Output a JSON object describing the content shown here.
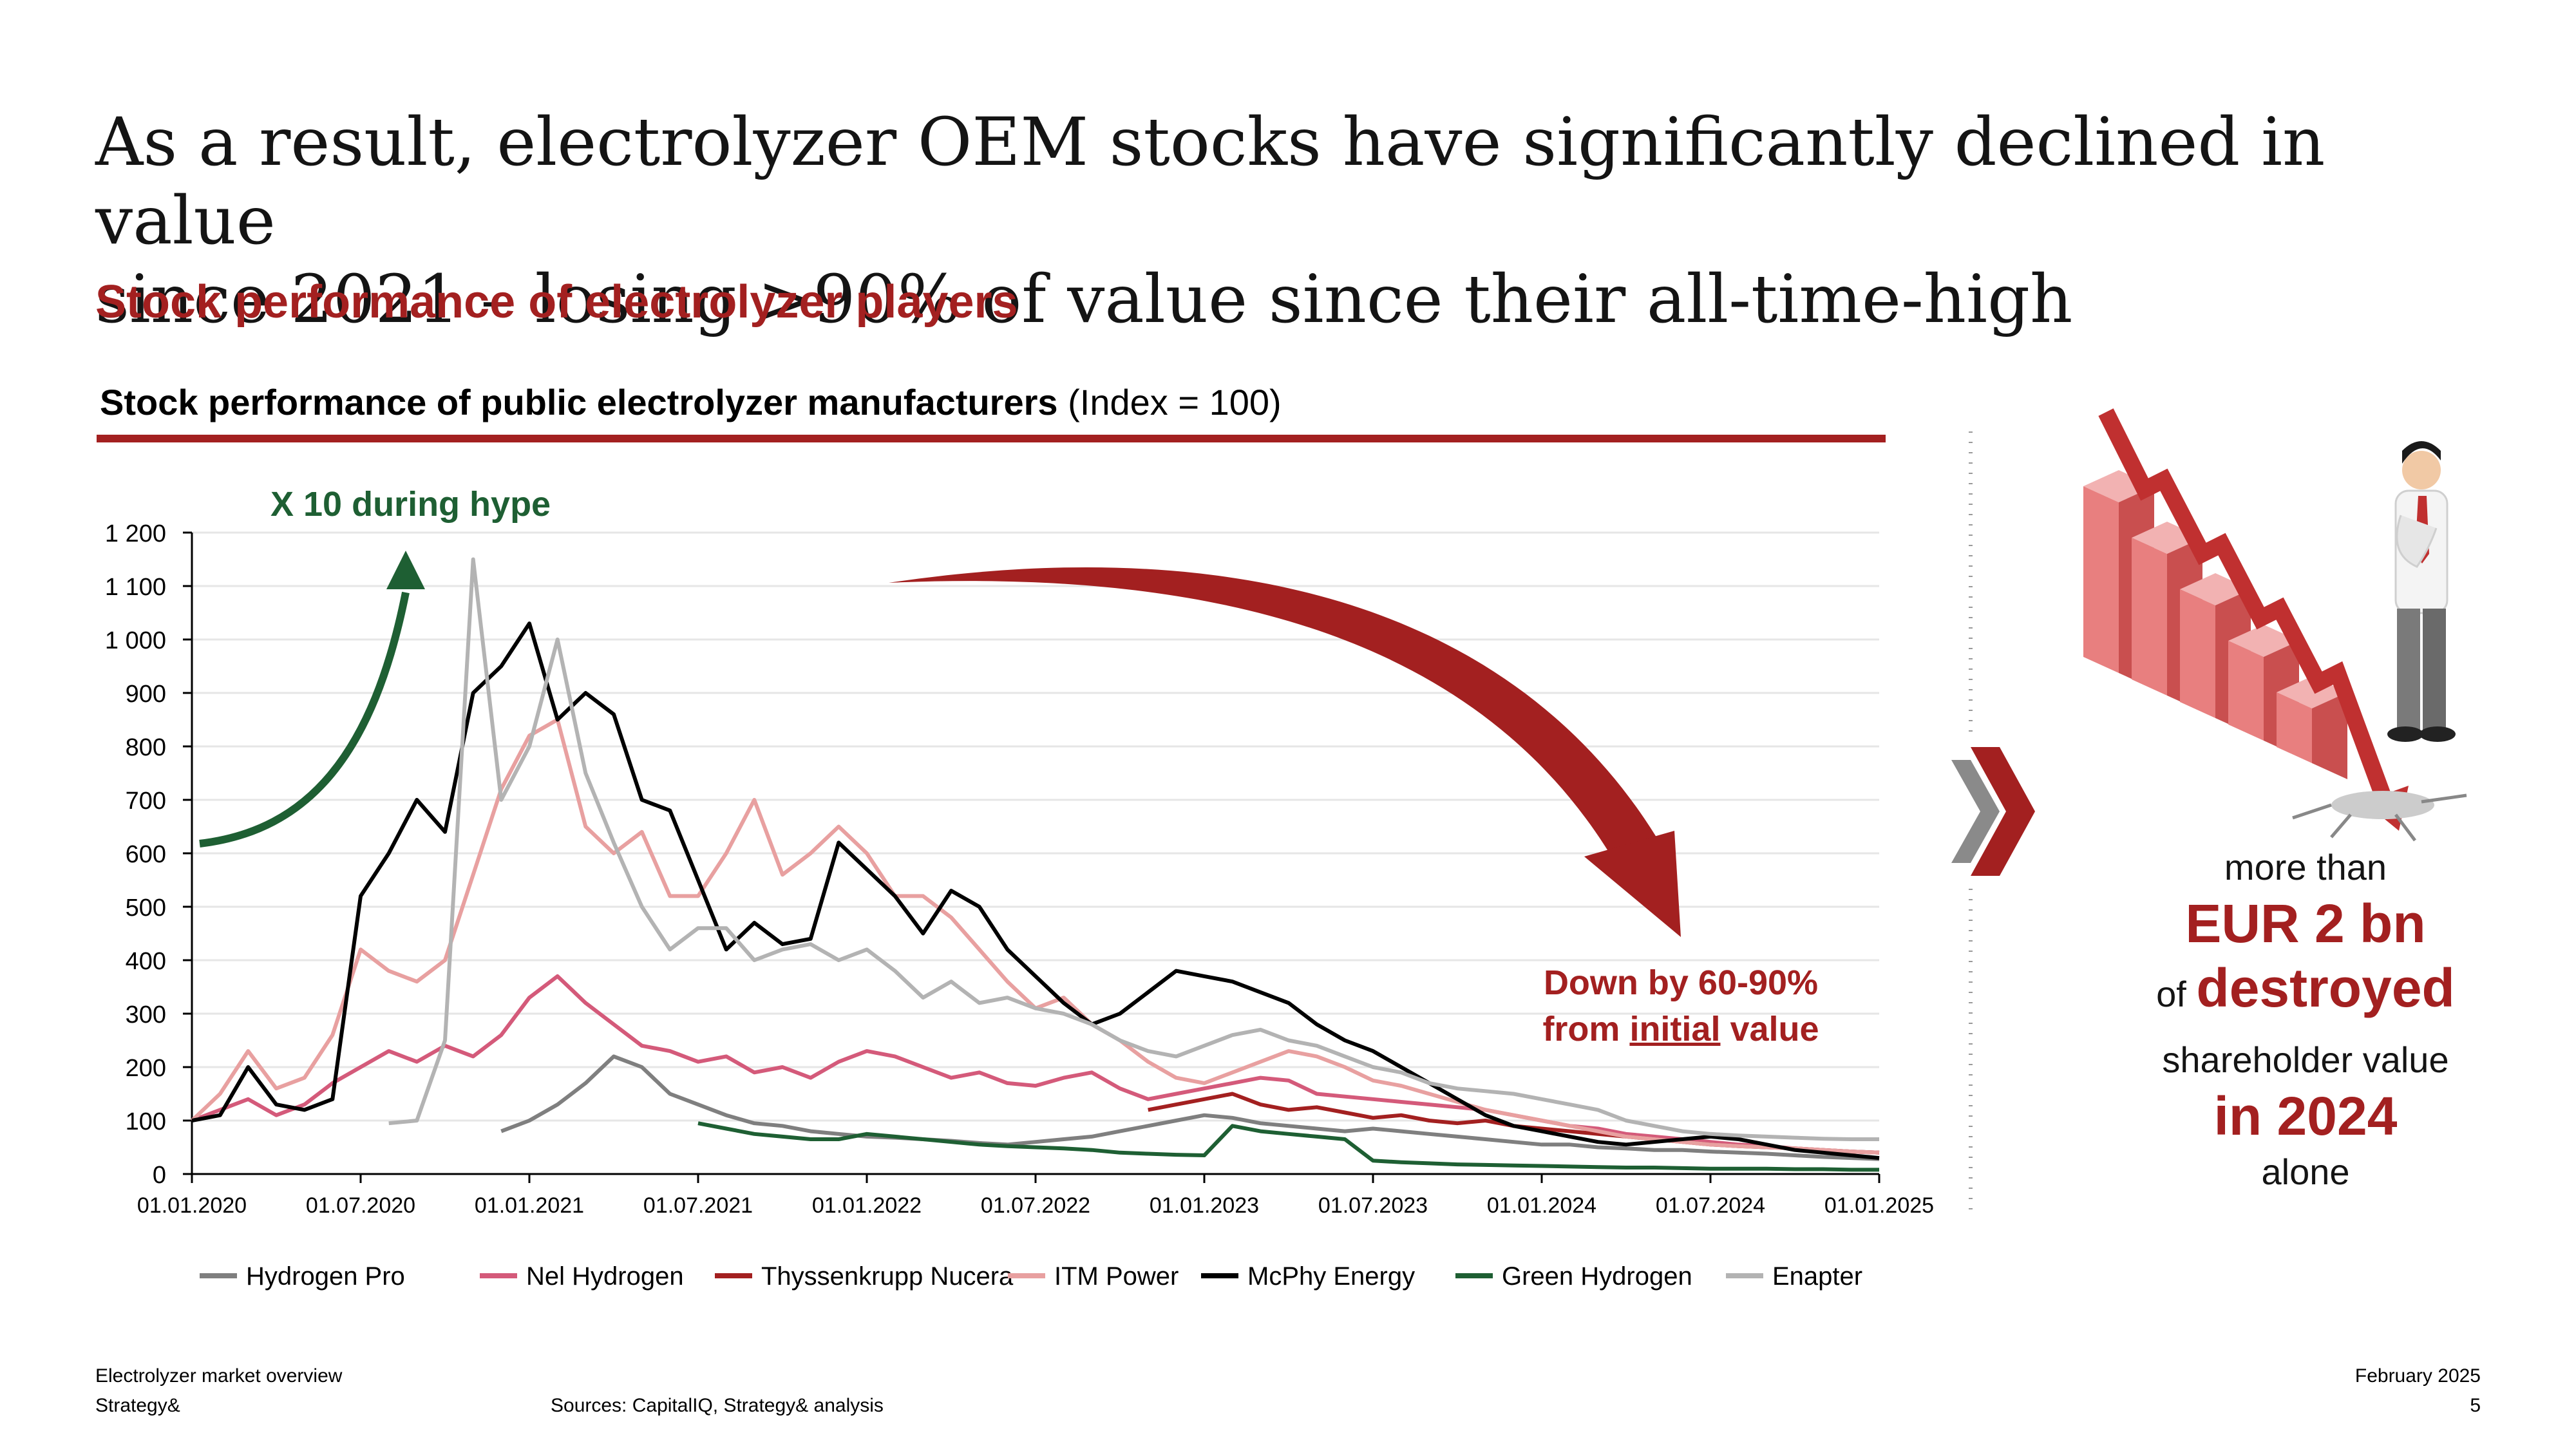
{
  "page": {
    "title_line1": "As a result, electrolyzer OEM stocks have significantly declined in value",
    "title_line2": "since 2021 – losing >90% of value since their all-time-high",
    "subtitle": "Stock performance of electrolyzer players",
    "chart_title_bold": "Stock performance of public electrolyzer manufacturers",
    "chart_title_rest": " (Index = 100)",
    "footer_left1": "Electrolyzer market overview",
    "footer_left2": "Strategy&",
    "footer_sources": "Sources: CapitalIQ, Strategy& analysis",
    "footer_date": "February 2025",
    "footer_page": "5"
  },
  "annotations": {
    "hype": "X 10 during hype",
    "down_line1": "Down by 60-90%",
    "down_line2_pre": "from ",
    "down_line2_underlined": "initial",
    "down_line2_post": " value"
  },
  "side": {
    "line1": "more than",
    "line2": "EUR 2 bn",
    "line3_small": "of ",
    "line3_big": "destroyed",
    "line4": "shareholder value",
    "line5": "in 2024",
    "line6": "alone"
  },
  "colors": {
    "accent_red": "#a32020",
    "hype_green": "#1e5f33",
    "grid": "#e6e6e6"
  },
  "chart_data": {
    "type": "line",
    "title": "Stock performance of public electrolyzer manufacturers (Index = 100)",
    "xlabel": "",
    "ylabel": "",
    "ylim": [
      0,
      1200
    ],
    "yticks": [
      0,
      100,
      200,
      300,
      400,
      500,
      600,
      700,
      800,
      900,
      1000,
      1100,
      1200
    ],
    "ytick_labels": [
      "0",
      "100",
      "200",
      "300",
      "400",
      "500",
      "600",
      "700",
      "800",
      "900",
      "1 000",
      "1 100",
      "1 200"
    ],
    "xlim": [
      0,
      60
    ],
    "xticks": [
      0,
      6,
      12,
      18,
      24,
      30,
      36,
      42,
      48,
      54,
      60
    ],
    "xtick_labels": [
      "01.01.2020",
      "01.07.2020",
      "01.01.2021",
      "01.07.2021",
      "01.01.2022",
      "01.07.2022",
      "01.01.2023",
      "01.07.2023",
      "01.01.2024",
      "01.07.2024",
      "01.01.2025"
    ],
    "x_unit": "months since 01.01.2020",
    "grid": true,
    "legend_position": "bottom",
    "series": [
      {
        "name": "Hydrogen Pro",
        "color": "#7f7f7f",
        "x": [
          11,
          12,
          13,
          14,
          15,
          16,
          17,
          18,
          19,
          20,
          21,
          22,
          23,
          24,
          25,
          26,
          27,
          28,
          29,
          30,
          31,
          32,
          33,
          34,
          35,
          36,
          37,
          38,
          39,
          40,
          41,
          42,
          43,
          44,
          45,
          46,
          47,
          48,
          49,
          50,
          51,
          52,
          53,
          54,
          55,
          56,
          57,
          58,
          59,
          60
        ],
        "values": [
          80,
          100,
          130,
          170,
          220,
          200,
          150,
          130,
          110,
          95,
          90,
          80,
          75,
          70,
          68,
          65,
          62,
          58,
          55,
          60,
          65,
          70,
          80,
          90,
          100,
          110,
          105,
          95,
          90,
          85,
          80,
          85,
          80,
          75,
          70,
          65,
          60,
          55,
          55,
          50,
          48,
          45,
          45,
          42,
          40,
          38,
          35,
          32,
          30,
          28
        ]
      },
      {
        "name": "Nel Hydrogen",
        "color": "#d45a7a",
        "x": [
          0,
          1,
          2,
          3,
          4,
          5,
          6,
          7,
          8,
          9,
          10,
          11,
          12,
          13,
          14,
          15,
          16,
          17,
          18,
          19,
          20,
          21,
          22,
          23,
          24,
          25,
          26,
          27,
          28,
          29,
          30,
          31,
          32,
          33,
          34,
          35,
          36,
          37,
          38,
          39,
          40,
          41,
          42,
          43,
          44,
          45,
          46,
          47,
          48,
          49,
          50,
          51,
          52,
          53,
          54,
          55,
          56,
          57,
          58,
          59,
          60
        ],
        "values": [
          100,
          120,
          140,
          110,
          130,
          170,
          200,
          230,
          210,
          240,
          220,
          260,
          330,
          370,
          320,
          280,
          240,
          230,
          210,
          220,
          190,
          200,
          180,
          210,
          230,
          220,
          200,
          180,
          190,
          170,
          165,
          180,
          190,
          160,
          140,
          150,
          160,
          170,
          180,
          175,
          150,
          145,
          140,
          135,
          130,
          125,
          120,
          110,
          100,
          90,
          85,
          75,
          70,
          65,
          60,
          55,
          52,
          48,
          45,
          42,
          40
        ]
      },
      {
        "name": "Thyssenkrupp Nucera",
        "color": "#a32020",
        "x": [
          34,
          35,
          36,
          37,
          38,
          39,
          40,
          41,
          42,
          43,
          44,
          45,
          46,
          47,
          48,
          49,
          50,
          51,
          52,
          53,
          54,
          55,
          56,
          57,
          58,
          59,
          60
        ],
        "values": [
          120,
          130,
          140,
          150,
          130,
          120,
          125,
          115,
          105,
          110,
          100,
          95,
          100,
          90,
          85,
          80,
          75,
          70,
          65,
          60,
          55,
          52,
          50,
          48,
          45,
          42,
          40
        ]
      },
      {
        "name": "ITM Power",
        "color": "#e8a0a0",
        "x": [
          0,
          1,
          2,
          3,
          4,
          5,
          6,
          7,
          8,
          9,
          10,
          11,
          12,
          13,
          14,
          15,
          16,
          17,
          18,
          19,
          20,
          21,
          22,
          23,
          24,
          25,
          26,
          27,
          28,
          29,
          30,
          31,
          32,
          33,
          34,
          35,
          36,
          37,
          38,
          39,
          40,
          41,
          42,
          43,
          44,
          45,
          46,
          47,
          48,
          49,
          50,
          51,
          52,
          53,
          54,
          55,
          56,
          57,
          58,
          59,
          60
        ],
        "values": [
          100,
          150,
          230,
          160,
          180,
          260,
          420,
          380,
          360,
          400,
          560,
          720,
          820,
          850,
          650,
          600,
          640,
          520,
          520,
          600,
          700,
          560,
          600,
          650,
          600,
          520,
          520,
          480,
          420,
          360,
          310,
          330,
          280,
          250,
          210,
          180,
          170,
          190,
          210,
          230,
          220,
          200,
          175,
          165,
          150,
          135,
          120,
          110,
          100,
          90,
          80,
          70,
          65,
          60,
          55,
          52,
          50,
          48,
          45,
          42,
          40
        ]
      },
      {
        "name": "McPhy Energy",
        "color": "#000000",
        "x": [
          0,
          1,
          2,
          3,
          4,
          5,
          6,
          7,
          8,
          9,
          10,
          11,
          12,
          13,
          14,
          15,
          16,
          17,
          18,
          19,
          20,
          21,
          22,
          23,
          24,
          25,
          26,
          27,
          28,
          29,
          30,
          31,
          32,
          33,
          34,
          35,
          36,
          37,
          38,
          39,
          40,
          41,
          42,
          43,
          44,
          45,
          46,
          47,
          48,
          49,
          50,
          51,
          52,
          53,
          54,
          55,
          56,
          57,
          58,
          59,
          60
        ],
        "values": [
          100,
          110,
          200,
          130,
          120,
          140,
          520,
          600,
          700,
          640,
          900,
          950,
          1030,
          850,
          900,
          860,
          700,
          680,
          550,
          420,
          470,
          430,
          440,
          620,
          570,
          520,
          450,
          530,
          500,
          420,
          370,
          320,
          280,
          300,
          340,
          380,
          370,
          360,
          340,
          320,
          280,
          250,
          230,
          200,
          170,
          140,
          110,
          90,
          80,
          70,
          60,
          55,
          60,
          65,
          70,
          65,
          55,
          45,
          40,
          35,
          30
        ]
      },
      {
        "name": "Green Hydrogen",
        "color": "#1e5f33",
        "x": [
          18,
          19,
          20,
          21,
          22,
          23,
          24,
          25,
          26,
          27,
          28,
          29,
          30,
          31,
          32,
          33,
          34,
          35,
          36,
          37,
          38,
          39,
          40,
          41,
          42,
          43,
          44,
          45,
          46,
          47,
          48,
          49,
          50,
          51,
          52,
          53,
          54,
          55,
          56,
          57,
          58,
          59,
          60
        ],
        "values": [
          95,
          85,
          75,
          70,
          65,
          65,
          75,
          70,
          65,
          60,
          55,
          52,
          50,
          48,
          45,
          40,
          38,
          36,
          35,
          90,
          80,
          75,
          70,
          65,
          25,
          22,
          20,
          18,
          17,
          16,
          15,
          14,
          13,
          12,
          12,
          11,
          10,
          10,
          10,
          9,
          9,
          8,
          8
        ]
      },
      {
        "name": "Enapter",
        "color": "#b3b3b3",
        "x": [
          7,
          8,
          9,
          10,
          11,
          12,
          13,
          14,
          15,
          16,
          17,
          18,
          19,
          20,
          21,
          22,
          23,
          24,
          25,
          26,
          27,
          28,
          29,
          30,
          31,
          32,
          33,
          34,
          35,
          36,
          37,
          38,
          39,
          40,
          41,
          42,
          43,
          44,
          45,
          46,
          47,
          48,
          49,
          50,
          51,
          52,
          53,
          54,
          55,
          56,
          57,
          58,
          59,
          60
        ],
        "values": [
          95,
          100,
          250,
          1150,
          700,
          800,
          1000,
          750,
          620,
          500,
          420,
          460,
          460,
          400,
          420,
          430,
          400,
          420,
          380,
          330,
          360,
          320,
          330,
          310,
          300,
          280,
          250,
          230,
          220,
          240,
          260,
          270,
          250,
          240,
          220,
          200,
          190,
          170,
          160,
          155,
          150,
          140,
          130,
          120,
          100,
          90,
          80,
          75,
          72,
          70,
          68,
          66,
          65,
          65
        ]
      }
    ]
  }
}
